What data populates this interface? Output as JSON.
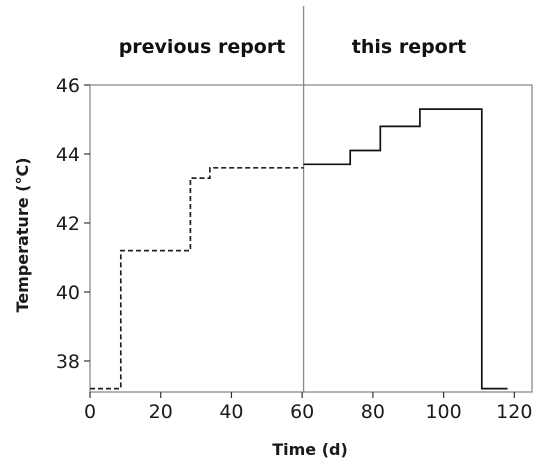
{
  "chart_data": {
    "type": "line",
    "title": "",
    "xlabel": "Time (d)",
    "ylabel": "Temperature (°C)",
    "xlim": [
      0,
      125
    ],
    "ylim": [
      37.1,
      46.0
    ],
    "xticks": [
      0,
      20,
      40,
      60,
      80,
      100,
      120
    ],
    "yticks": [
      38,
      40,
      42,
      44,
      46
    ],
    "grid": false,
    "divider_x": 60.4,
    "region_labels": {
      "left": "previous report",
      "right": "this report"
    },
    "series": [
      {
        "style": "dashed",
        "color": "#222222",
        "x": [
          0,
          8.7,
          8.7,
          28.4,
          28.4,
          33.9,
          33.9,
          60.4
        ],
        "y": [
          37.2,
          37.2,
          41.2,
          41.2,
          43.3,
          43.3,
          43.6,
          43.6
        ]
      },
      {
        "style": "solid",
        "color": "#111111",
        "x": [
          60.4,
          73.6,
          73.6,
          82.1,
          82.1,
          93.3,
          93.3,
          110.8,
          110.8,
          118.1
        ],
        "y": [
          43.7,
          43.7,
          44.1,
          44.1,
          44.8,
          44.8,
          45.3,
          45.3,
          37.2,
          37.2
        ]
      }
    ]
  }
}
